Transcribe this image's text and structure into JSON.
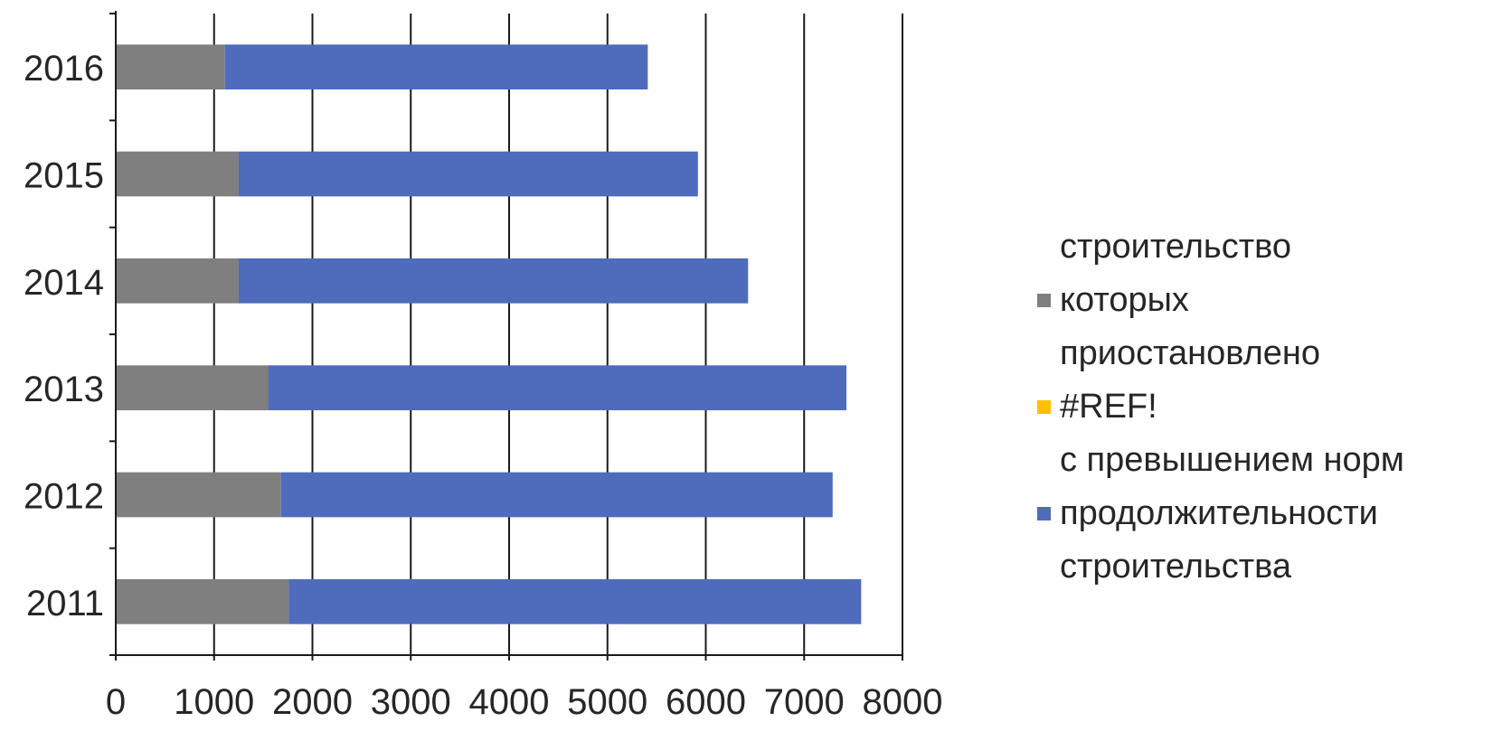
{
  "chart_data": {
    "type": "bar",
    "orientation": "horizontal",
    "stacked": true,
    "categories": [
      "2016",
      "2015",
      "2014",
      "2013",
      "2012",
      "2011"
    ],
    "series": [
      {
        "name": "строительство\nкоторых\nприостановлено",
        "color": "#7f7f7f",
        "values": [
          1110,
          1250,
          1250,
          1550,
          1680,
          1760
        ]
      },
      {
        "name": "#REF!",
        "color": "#ffc000",
        "values": [
          0,
          0,
          0,
          0,
          0,
          0
        ]
      },
      {
        "name": "с превышением норм\nпродолжительности\nстроительства",
        "color": "#4f6bbb",
        "values": [
          4300,
          4670,
          5180,
          5880,
          5610,
          5820
        ]
      }
    ],
    "xlim": [
      0,
      8000
    ],
    "xticks": [
      "0",
      "1000",
      "2000",
      "3000",
      "4000",
      "5000",
      "6000",
      "7000",
      "8000"
    ],
    "grid": "vertical",
    "legend": "right",
    "title": "",
    "xlabel": "",
    "ylabel": ""
  }
}
